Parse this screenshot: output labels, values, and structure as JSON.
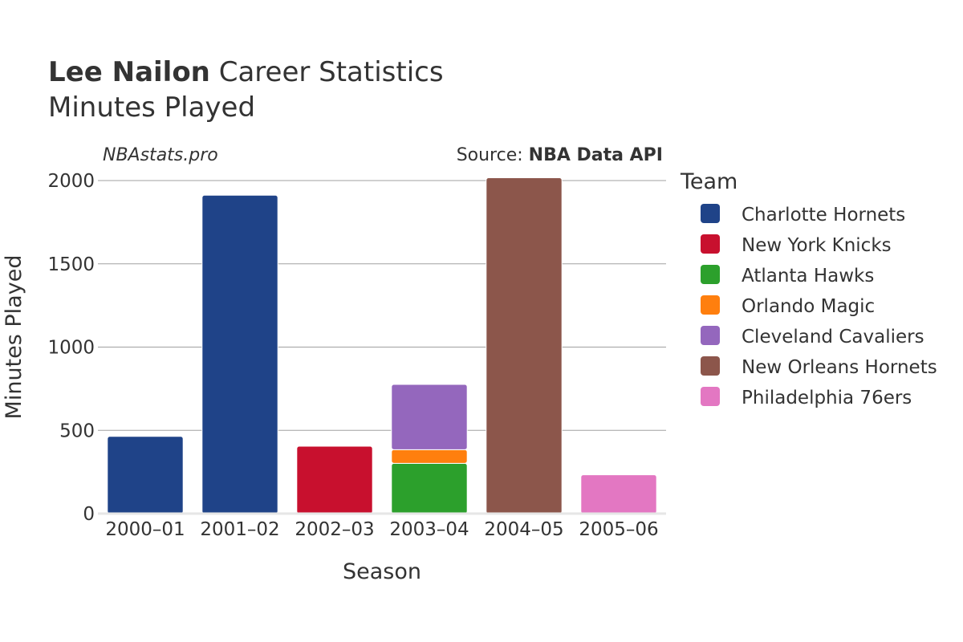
{
  "header": {
    "player_name": "Lee Nailon",
    "title_rest": "Career Statistics",
    "subtitle": "Minutes Played"
  },
  "credits": {
    "site": "NBAstats.pro",
    "source_prefix": "Source: ",
    "source_name": "NBA Data API"
  },
  "legend": {
    "title": "Team"
  },
  "chart_data": {
    "type": "bar",
    "stacked": true,
    "categories": [
      "2000–01",
      "2001–02",
      "2002–03",
      "2003–04",
      "2004–05",
      "2005–06"
    ],
    "xlabel": "Season",
    "ylabel": "Minutes Played",
    "ylim": [
      0,
      2000
    ],
    "yticks": [
      0,
      500,
      1000,
      1500,
      2000
    ],
    "grid": true,
    "legend_position": "right",
    "series": [
      {
        "name": "Charlotte Hornets",
        "color": "#1f4388",
        "values": [
          464,
          1912,
          0,
          0,
          0,
          0
        ]
      },
      {
        "name": "New York Knicks",
        "color": "#c8102e",
        "values": [
          0,
          0,
          405,
          0,
          0,
          0
        ]
      },
      {
        "name": "Atlanta Hawks",
        "color": "#2ca02c",
        "values": [
          0,
          0,
          0,
          302,
          0,
          0
        ]
      },
      {
        "name": "Orlando Magic",
        "color": "#ff7f0e",
        "values": [
          0,
          0,
          0,
          82,
          0,
          0
        ]
      },
      {
        "name": "Cleveland Cavaliers",
        "color": "#9467bd",
        "values": [
          0,
          0,
          0,
          392,
          0,
          0
        ]
      },
      {
        "name": "New Orleans Hornets",
        "color": "#8c564b",
        "values": [
          0,
          0,
          0,
          0,
          2017,
          0
        ]
      },
      {
        "name": "Philadelphia 76ers",
        "color": "#e377c2",
        "values": [
          0,
          0,
          0,
          0,
          0,
          233
        ]
      }
    ]
  }
}
